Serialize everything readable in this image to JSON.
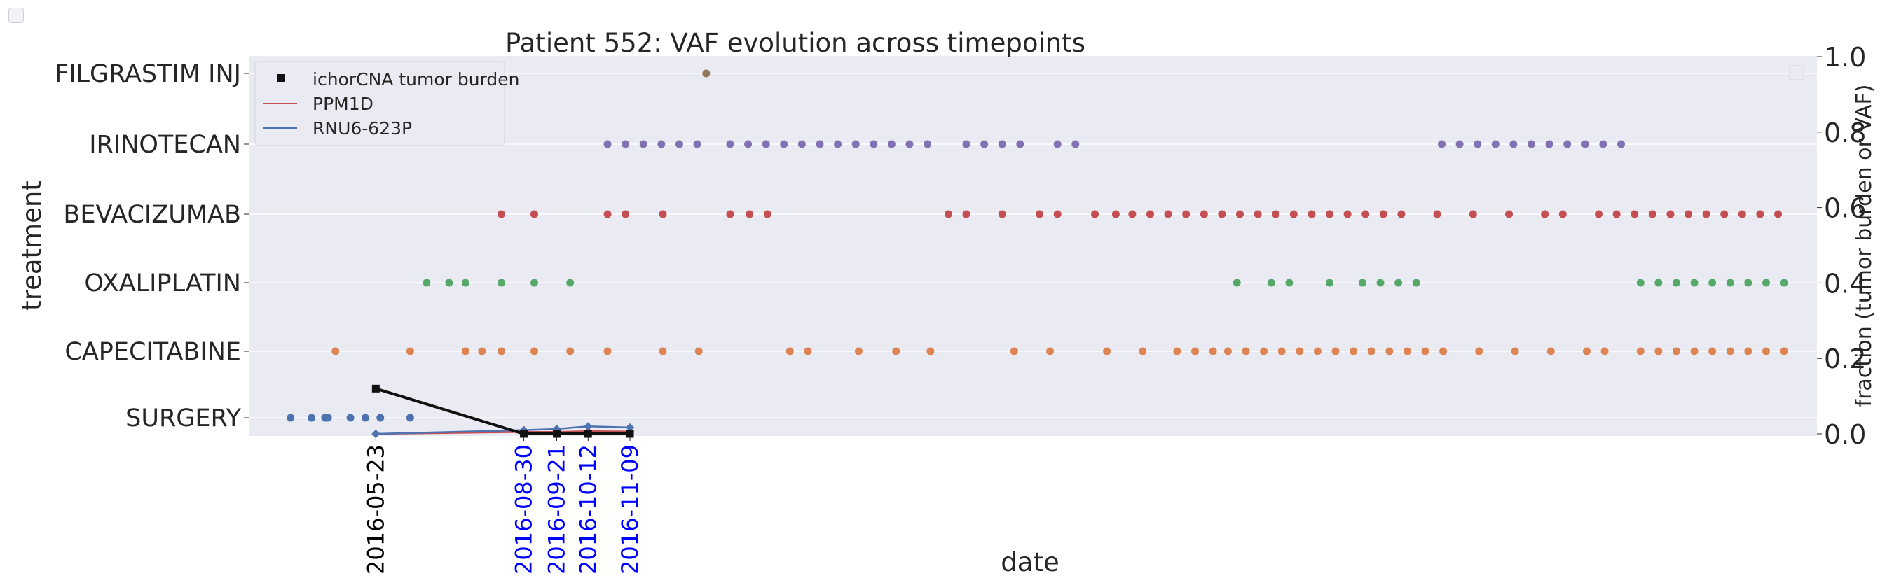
{
  "chart_data": {
    "type": "scatter",
    "title": "Patient 552: VAF evolution across timepoints",
    "xlabel": "date",
    "ylabel": "treatment",
    "ylabel_right": "fraction (tumor burden or VAF)",
    "ylim_right": [
      -0.02,
      1.02
    ],
    "right_ticks": [
      "0.0",
      "0.2",
      "0.4",
      "0.6",
      "0.8",
      "1.0"
    ],
    "treatments": [
      "SURGERY",
      "CAPECITABINE",
      "OXALIPLATIN",
      "BEVACIZUMAB",
      "IRINOTECAN",
      "FILGRASTIM INJ"
    ],
    "treatment_colors": {
      "SURGERY": "#4c72b0",
      "CAPECITABINE": "#dd8452",
      "OXALIPLATIN": "#55a868",
      "BEVACIZUMAB": "#c44e52",
      "IRINOTECAN": "#8172b3",
      "FILGRASTIM INJ": "#937860"
    },
    "x_ticks": [
      {
        "date": "2016-05-23",
        "color": "#000000"
      },
      {
        "date": "2016-08-30",
        "color": "#0000ff"
      },
      {
        "date": "2016-09-21",
        "color": "#0000ff"
      },
      {
        "date": "2016-10-12",
        "color": "#0000ff"
      },
      {
        "date": "2016-11-09",
        "color": "#0000ff"
      }
    ],
    "treatment_events": {
      "SURGERY": [
        "2016-03-27",
        "2016-04-10",
        "2016-04-19",
        "2016-04-20",
        "2016-04-21",
        "2016-05-06",
        "2016-05-16",
        "2016-05-26",
        "2016-06-15"
      ],
      "CAPECITABINE": [
        "2016-04-26",
        "2016-06-15",
        "2016-07-22",
        "2016-08-02",
        "2016-08-15",
        "2016-09-06",
        "2016-09-30",
        "2016-10-25",
        "2016-12-01",
        "2016-12-25",
        "2017-02-24",
        "2017-03-08",
        "2017-04-11",
        "2017-05-06",
        "2017-05-29",
        "2017-07-24",
        "2017-08-17",
        "2017-09-24",
        "2017-10-18",
        "2017-11-10",
        "2017-11-22",
        "2017-12-04",
        "2017-12-14",
        "2017-12-26",
        "2018-01-07",
        "2018-01-19",
        "2018-01-31",
        "2018-02-12",
        "2018-02-24",
        "2018-03-08",
        "2018-03-20",
        "2018-04-01",
        "2018-04-13",
        "2018-04-25",
        "2018-05-07",
        "2018-05-31",
        "2018-06-24",
        "2018-07-18",
        "2018-08-11",
        "2018-08-23",
        "2018-09-16",
        "2018-09-28",
        "2018-10-10",
        "2018-10-22",
        "2018-11-03",
        "2018-11-15",
        "2018-11-27",
        "2018-12-09",
        "2018-12-21"
      ],
      "OXALIPLATIN": [
        "2016-06-26",
        "2016-07-11",
        "2016-07-22",
        "2016-08-15",
        "2016-09-06",
        "2016-09-30",
        "2017-12-20",
        "2018-01-12",
        "2018-01-24",
        "2018-02-20",
        "2018-03-14",
        "2018-03-26",
        "2018-04-07",
        "2018-04-19",
        "2018-09-16",
        "2018-09-28",
        "2018-10-10",
        "2018-10-22",
        "2018-11-03",
        "2018-11-15",
        "2018-11-27",
        "2018-12-09",
        "2018-12-21"
      ],
      "BEVACIZUMAB": [
        "2016-08-15",
        "2016-09-06",
        "2016-10-25",
        "2016-11-06",
        "2016-12-01",
        "2017-01-15",
        "2017-01-28",
        "2017-02-09",
        "2017-06-10",
        "2017-06-22",
        "2017-07-16",
        "2017-08-10",
        "2017-08-22",
        "2017-09-16",
        "2017-09-30",
        "2017-10-11",
        "2017-10-23",
        "2017-11-04",
        "2017-11-16",
        "2017-11-28",
        "2017-12-10",
        "2017-12-22",
        "2018-01-03",
        "2018-01-15",
        "2018-01-27",
        "2018-02-08",
        "2018-02-20",
        "2018-03-04",
        "2018-03-16",
        "2018-03-28",
        "2018-04-09",
        "2018-05-03",
        "2018-05-27",
        "2018-06-20",
        "2018-07-14",
        "2018-07-26",
        "2018-08-19",
        "2018-08-31",
        "2018-09-12",
        "2018-09-24",
        "2018-10-06",
        "2018-10-18",
        "2018-10-30",
        "2018-11-11",
        "2018-11-23",
        "2018-12-05",
        "2018-12-17"
      ],
      "IRINOTECAN": [
        "2016-10-25",
        "2016-11-06",
        "2016-11-18",
        "2016-11-30",
        "2016-12-12",
        "2016-12-24",
        "2017-01-15",
        "2017-01-27",
        "2017-02-08",
        "2017-02-20",
        "2017-03-04",
        "2017-03-16",
        "2017-03-28",
        "2017-04-09",
        "2017-04-21",
        "2017-05-03",
        "2017-05-15",
        "2017-05-27",
        "2017-06-22",
        "2017-07-04",
        "2017-07-16",
        "2017-07-28",
        "2017-08-22",
        "2017-09-03",
        "2018-05-06",
        "2018-05-18",
        "2018-05-30",
        "2018-06-11",
        "2018-06-23",
        "2018-07-05",
        "2018-07-17",
        "2018-07-29",
        "2018-08-10",
        "2018-08-22",
        "2018-09-03"
      ],
      "FILGRASTIM INJ": [
        "2016-12-30"
      ]
    },
    "series": [
      {
        "name": "ichorCNA tumor burden",
        "color": "#111111",
        "marker": "square",
        "x": [
          "2016-05-23",
          "2016-08-30",
          "2016-09-21",
          "2016-10-12",
          "2016-11-09"
        ],
        "values": [
          0.12,
          0.0,
          0.0,
          0.0,
          0.0
        ]
      },
      {
        "name": "PPM1D",
        "color": "#c44e52",
        "marker": "diamond",
        "x": [
          "2016-05-23",
          "2016-08-30",
          "2016-09-21",
          "2016-10-12",
          "2016-11-09"
        ],
        "values": [
          0.0,
          0.005,
          0.005,
          0.007,
          0.006
        ]
      },
      {
        "name": "RNU6-623P",
        "color": "#4c72b0",
        "marker": "diamond",
        "x": [
          "2016-05-23",
          "2016-08-30",
          "2016-09-21",
          "2016-10-12",
          "2016-11-09"
        ],
        "values": [
          0.0,
          0.01,
          0.013,
          0.02,
          0.017
        ]
      }
    ],
    "legend_position": "upper-left",
    "grid": true
  }
}
